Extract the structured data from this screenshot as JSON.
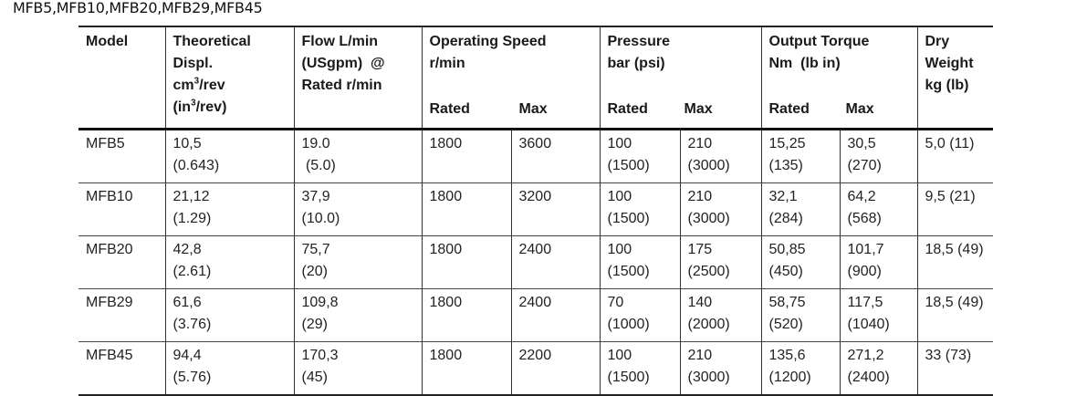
{
  "caption": "MFB5,MFB10,MFB20,MFB29,MFB45",
  "headers": {
    "model": "Model",
    "displ": [
      "Theoretical",
      "Displ.",
      "cm",
      "/rev",
      "(in",
      "/rev)"
    ],
    "displ_sup": "3",
    "flow": [
      "Flow L/min",
      "(USgpm)  @",
      "Rated r/min"
    ],
    "speed": [
      "Operating Speed",
      "r/min"
    ],
    "pressure": [
      "Pressure",
      "bar (psi)"
    ],
    "torque": [
      "Output Torque",
      "Nm  (lb in)"
    ],
    "weight": [
      "Dry Weight",
      "kg (lb)"
    ],
    "rated": "Rated",
    "max": "Max"
  },
  "rows": [
    {
      "model": "MFB5",
      "displ": [
        "10,5",
        "(0.643)"
      ],
      "flow": [
        "19.0",
        " (5.0)"
      ],
      "speed_rated": "1800",
      "speed_max": "3600",
      "p_rated": [
        "100",
        "(1500)"
      ],
      "p_max": [
        "210",
        "(3000)"
      ],
      "t_rated": [
        "15,25",
        "(135)"
      ],
      "t_max": [
        "30,5",
        "(270)"
      ],
      "weight": "5,0 (11)"
    },
    {
      "model": "MFB10",
      "displ": [
        "21,12",
        "(1.29)"
      ],
      "flow": [
        "37,9",
        "(10.0)"
      ],
      "speed_rated": "1800",
      "speed_max": "3200",
      "p_rated": [
        "100",
        "(1500)"
      ],
      "p_max": [
        "210",
        "(3000)"
      ],
      "t_rated": [
        "32,1",
        "(284)"
      ],
      "t_max": [
        "64,2",
        "(568)"
      ],
      "weight": "9,5 (21)"
    },
    {
      "model": "MFB20",
      "displ": [
        "42,8",
        "(2.61)"
      ],
      "flow": [
        "75,7",
        "(20)"
      ],
      "speed_rated": "1800",
      "speed_max": "2400",
      "p_rated": [
        "100",
        "(1500)"
      ],
      "p_max": [
        "175",
        "(2500)"
      ],
      "t_rated": [
        "50,85",
        "(450)"
      ],
      "t_max": [
        "101,7",
        "(900)"
      ],
      "weight": "18,5 (49)"
    },
    {
      "model": "MFB29",
      "displ": [
        "61,6",
        "(3.76)"
      ],
      "flow": [
        "109,8",
        "(29)"
      ],
      "speed_rated": "1800",
      "speed_max": "2400",
      "p_rated": [
        "70",
        "(1000)"
      ],
      "p_max": [
        "140",
        "(2000)"
      ],
      "t_rated": [
        "58,75",
        "(520)"
      ],
      "t_max": [
        "117,5",
        "(1040)"
      ],
      "weight": "18,5 (49)"
    },
    {
      "model": "MFB45",
      "displ": [
        "94,4",
        "(5.76)"
      ],
      "flow": [
        "170,3",
        "(45)"
      ],
      "speed_rated": "1800",
      "speed_max": "2200",
      "p_rated": [
        "100",
        "(1500)"
      ],
      "p_max": [
        "210",
        "(3000)"
      ],
      "t_rated": [
        "135,6",
        "(1200)"
      ],
      "t_max": [
        "271,2",
        "(2400)"
      ],
      "weight": "33 (73)"
    }
  ]
}
